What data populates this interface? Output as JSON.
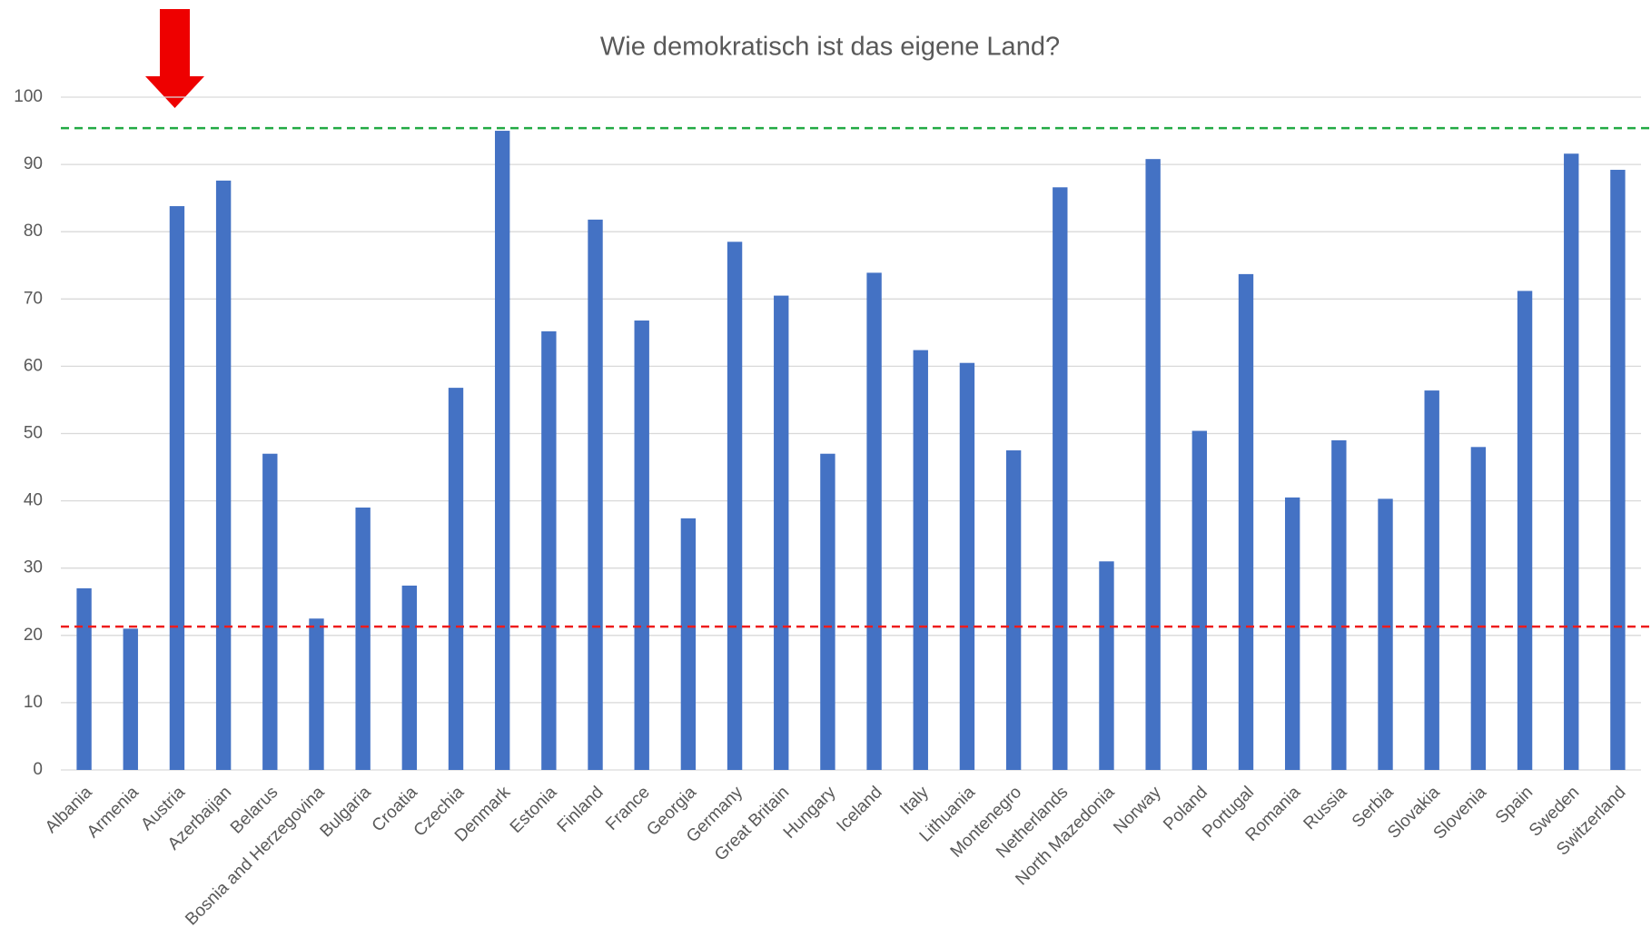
{
  "chart_data": {
    "type": "bar",
    "title": "Wie demokratisch ist das eigene Land?",
    "categories": [
      "Albania",
      "Armenia",
      "Austria",
      "Azerbaijan",
      "Belarus",
      "Bosnia and Herzegovina",
      "Bulgaria",
      "Croatia",
      "Czechia",
      "Denmark",
      "Estonia",
      "Finland",
      "France",
      "Georgia",
      "Germany",
      "Great Britain",
      "Hungary",
      "Iceland",
      "Italy",
      "Lithuania",
      "Montenegro",
      "Netherlands",
      "North Mazedonia",
      "Norway",
      "Poland",
      "Portugal",
      "Romania",
      "Russia",
      "Serbia",
      "Slovakia",
      "Slovenia",
      "Spain",
      "Sweden",
      "Switzerland"
    ],
    "values": [
      27,
      21,
      83.8,
      87.6,
      47,
      22.5,
      39,
      27.4,
      56.8,
      95,
      65.2,
      81.8,
      66.8,
      37.4,
      78.5,
      70.5,
      47,
      73.9,
      62.4,
      60.5,
      47.5,
      86.6,
      31,
      90.8,
      50.4,
      73.7,
      40.5,
      49,
      40.3,
      56.4,
      48,
      71.2,
      91.6,
      89.2
    ],
    "color": "#4472c4",
    "ylim": [
      0,
      100
    ],
    "yticks": [
      0,
      10,
      20,
      30,
      40,
      50,
      60,
      70,
      80,
      90,
      100
    ],
    "grid": true,
    "reference_lines": [
      {
        "value": 95.4,
        "color": "#22aa44"
      },
      {
        "value": 21.3,
        "color": "#ee1c1c"
      }
    ]
  }
}
